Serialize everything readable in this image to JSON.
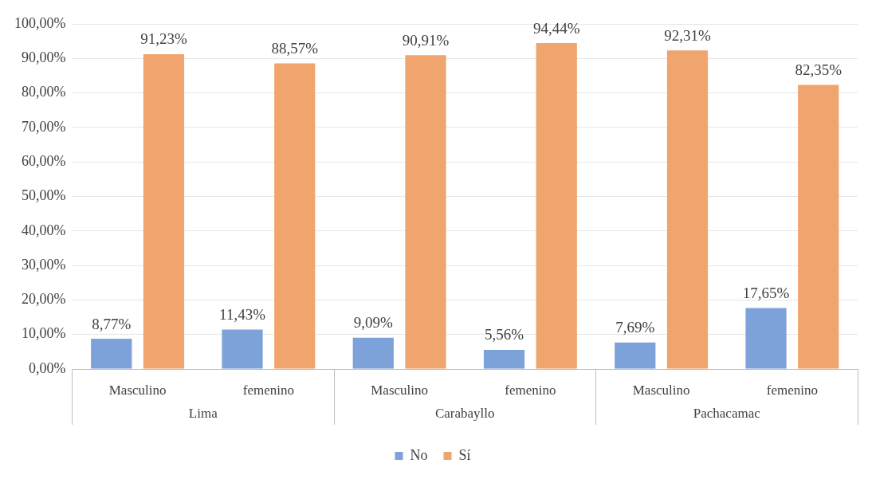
{
  "chart_data": {
    "type": "bar",
    "categories": [
      "Masculino",
      "femenino",
      "Masculino",
      "femenino",
      "Masculino",
      "femenino"
    ],
    "annotations": [
      "Lima",
      "Carabayllo",
      "Pachacamac"
    ],
    "series": [
      {
        "name": "No",
        "color": "#7da2d9",
        "values": [
          8.77,
          11.43,
          9.09,
          5.56,
          7.69,
          17.65
        ],
        "value_labels": [
          "8,77%",
          "11,43%",
          "9,09%",
          "5,56%",
          "7,69%",
          "17,65%"
        ]
      },
      {
        "name": "Sí",
        "color": "#f1a56e",
        "values": [
          91.23,
          88.57,
          90.91,
          94.44,
          92.31,
          82.35
        ],
        "value_labels": [
          "91,23%",
          "88,57%",
          "90,91%",
          "94,44%",
          "92,31%",
          "82,35%"
        ]
      }
    ],
    "ylim": [
      0,
      100
    ],
    "yticks": [
      {
        "value": 0,
        "label": "0,00%"
      },
      {
        "value": 10,
        "label": "10,00%"
      },
      {
        "value": 20,
        "label": "20,00%"
      },
      {
        "value": 30,
        "label": "30,00%"
      },
      {
        "value": 40,
        "label": "40,00%"
      },
      {
        "value": 50,
        "label": "50,00%"
      },
      {
        "value": 60,
        "label": "60,00%"
      },
      {
        "value": 70,
        "label": "70,00%"
      },
      {
        "value": 80,
        "label": "80,00%"
      },
      {
        "value": 90,
        "label": "90,00%"
      },
      {
        "value": 100,
        "label": "100,00%"
      }
    ],
    "grid": "y",
    "legend": "bottom"
  }
}
